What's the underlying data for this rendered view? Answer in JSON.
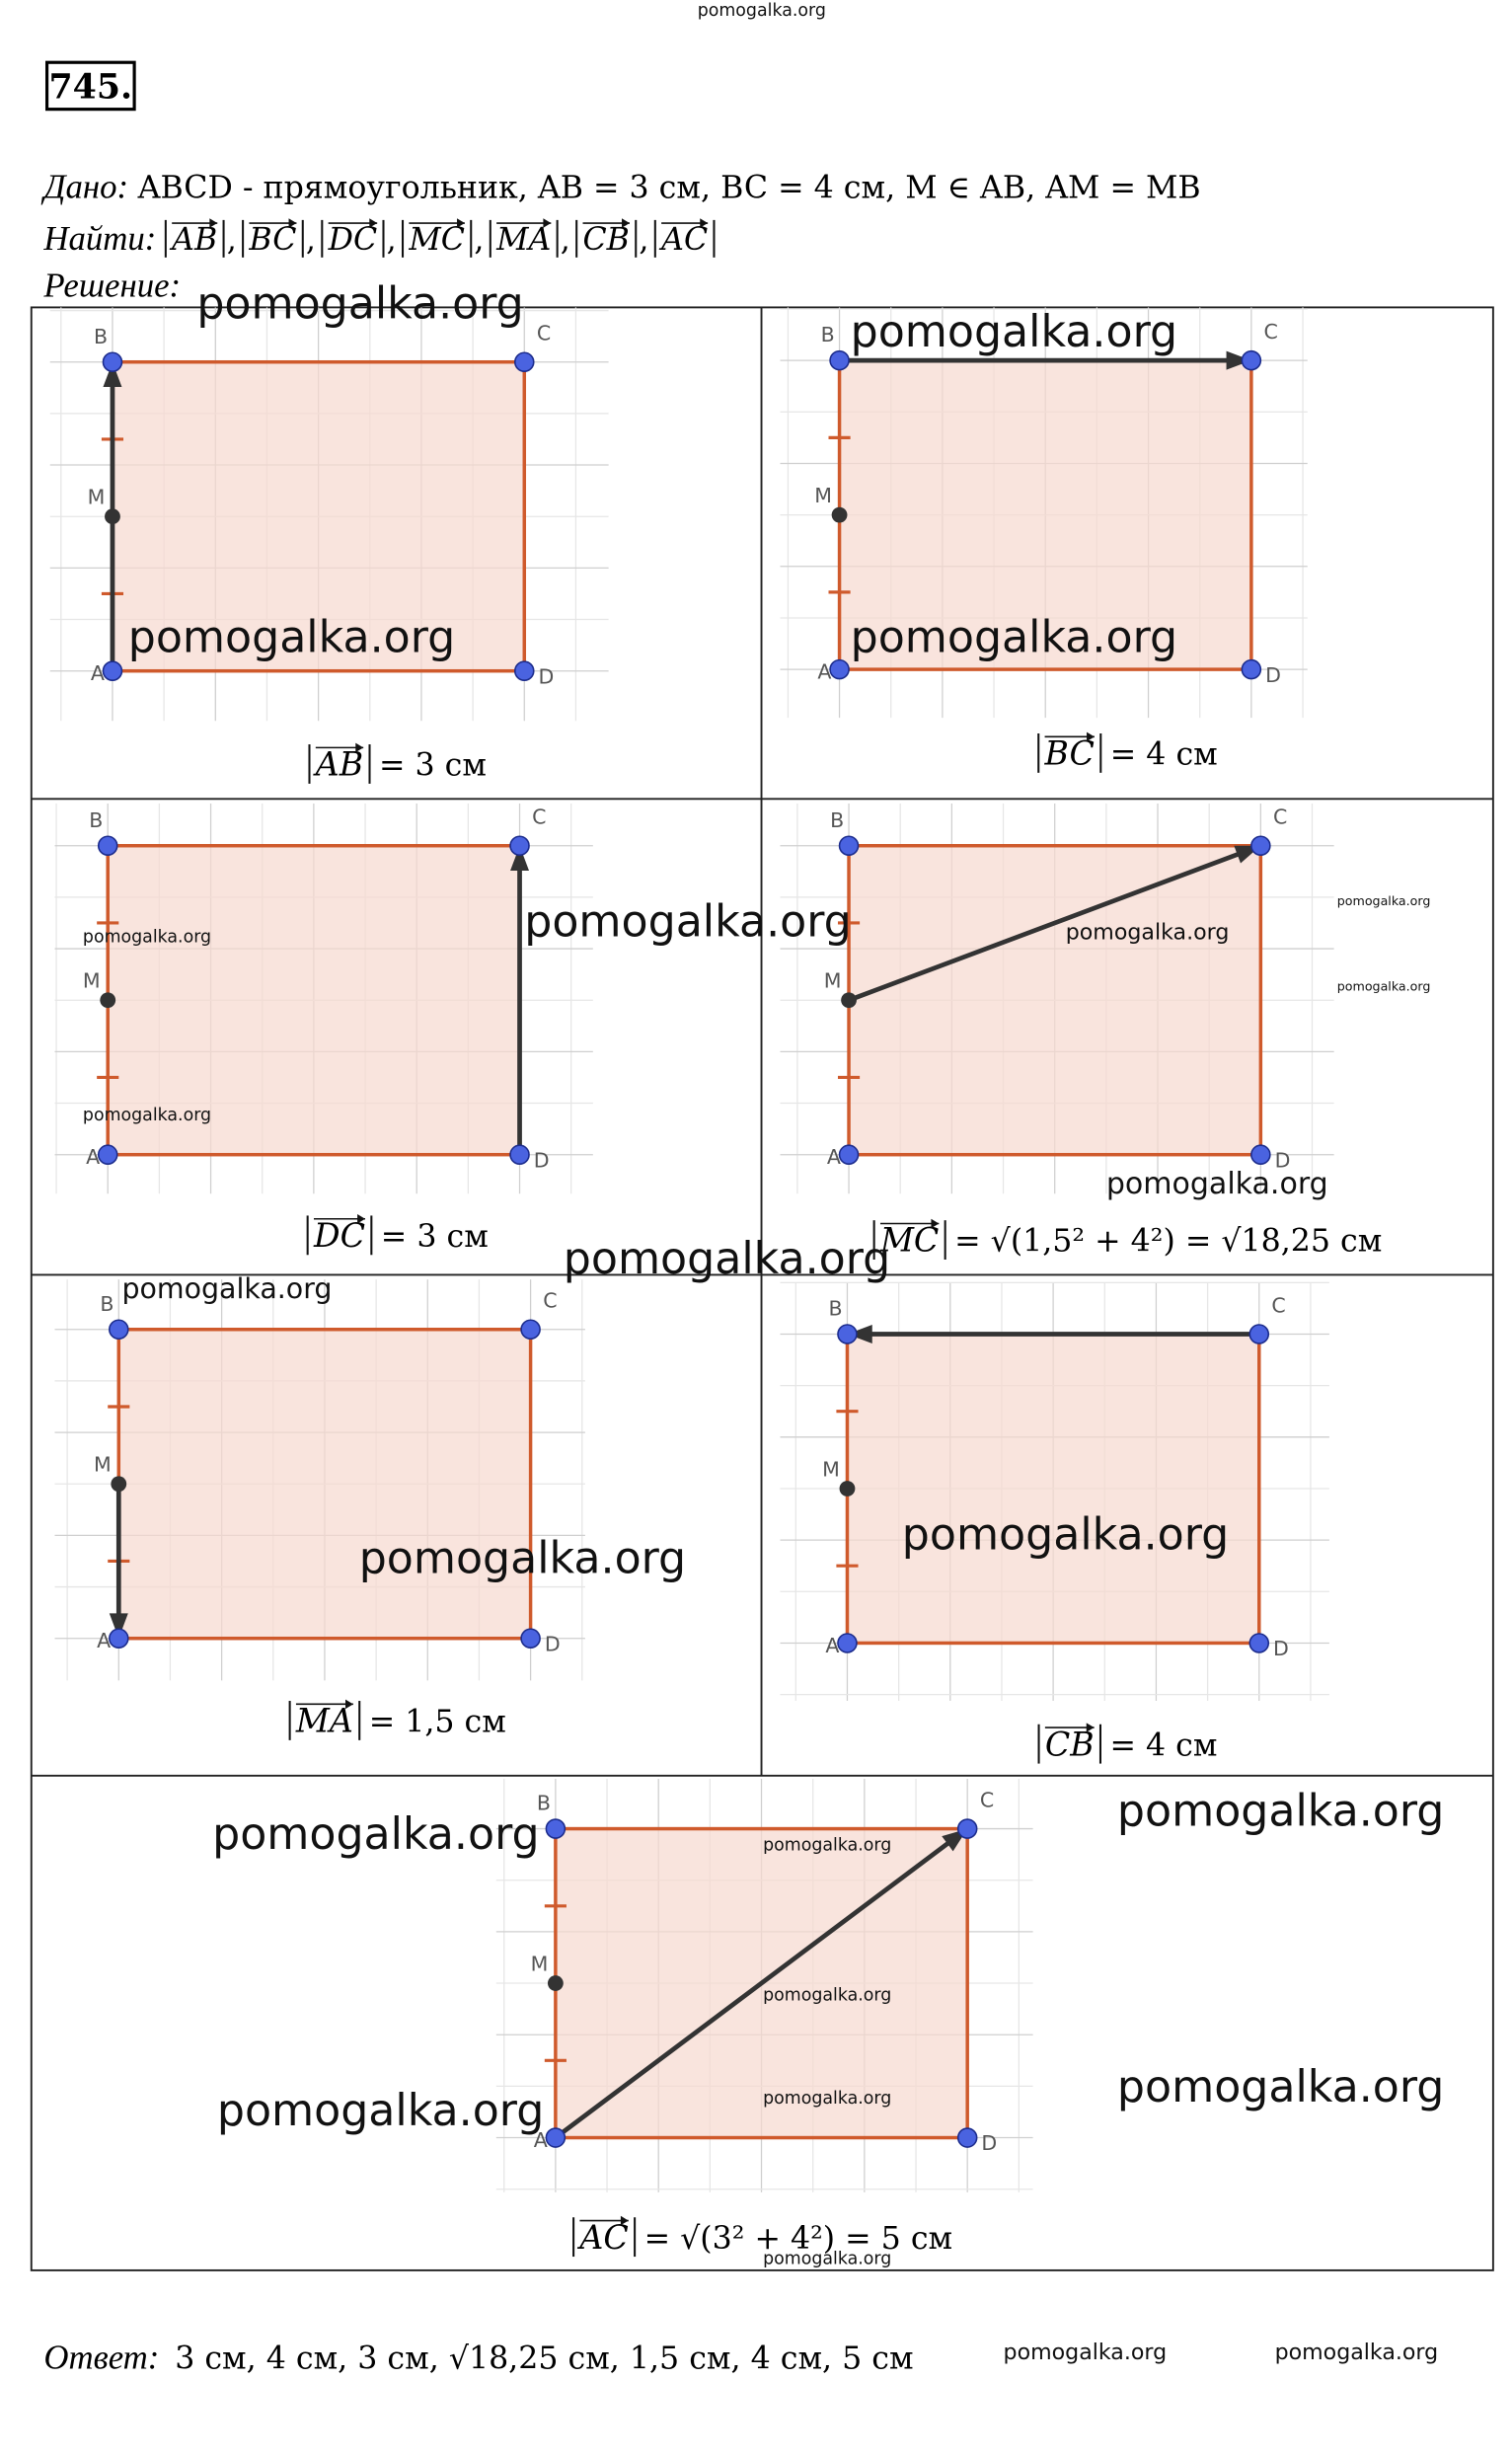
{
  "header": {
    "site": "pomogalka.org",
    "number": "745."
  },
  "given": {
    "label": "Дано:",
    "text": "ABCD - прямоугольник, AB = 3 см, BC = 4 см, M ∈ AB, AM = MB"
  },
  "find": {
    "label": "Найти:",
    "items": [
      "AB",
      "BC",
      "DC",
      "MC",
      "MA",
      "CB",
      "AC"
    ],
    "separator": ","
  },
  "solution": {
    "label": "Решение:"
  },
  "points": [
    "A",
    "B",
    "C",
    "D",
    "M"
  ],
  "panels": [
    {
      "vector": "AB",
      "result": "= 3 см"
    },
    {
      "vector": "BC",
      "result": "= 4 см"
    },
    {
      "vector": "DC",
      "result": "= 3 см"
    },
    {
      "vector": "MC",
      "result": "= √(1,5² + 4²) = √18,25 см"
    },
    {
      "vector": "MA",
      "result": "= 1,5 см"
    },
    {
      "vector": "CB",
      "result": "= 4 см"
    },
    {
      "vector": "AC",
      "result": "= √(3² + 4²) = 5 см"
    }
  ],
  "answer": {
    "label": "Ответ:",
    "text": "3 см, 4 см, 3 см, √18,25 см, 1,5 см, 4 см, 5 см"
  },
  "watermark": "pomogalka.org"
}
